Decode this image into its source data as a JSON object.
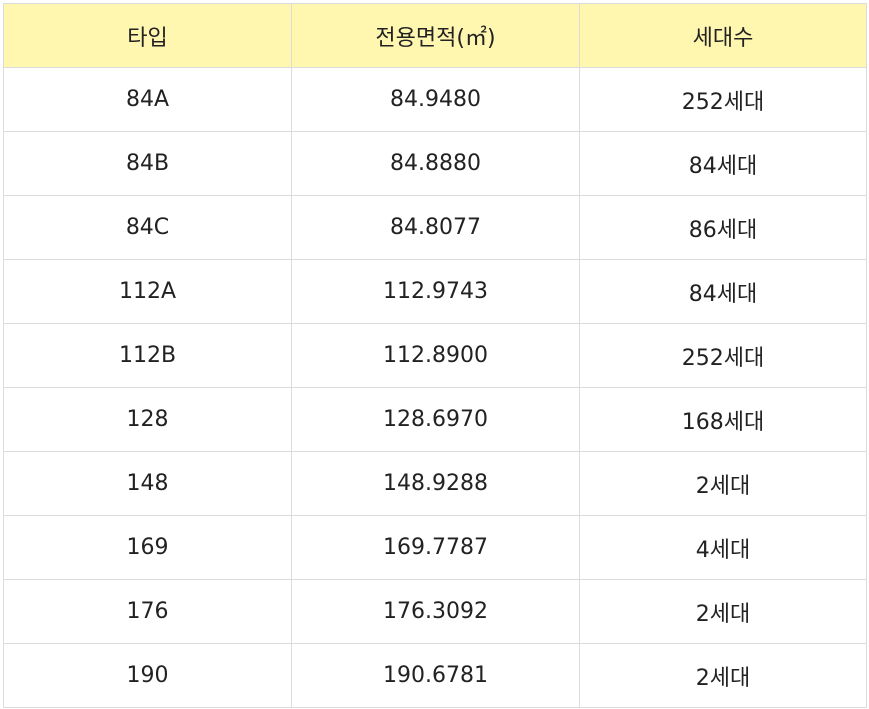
{
  "table": {
    "header": [
      "타입",
      "전용면적(㎡)",
      "세대수"
    ],
    "rows": [
      [
        "84A",
        "84.9480",
        "252세대"
      ],
      [
        "84B",
        "84.8880",
        "84세대"
      ],
      [
        "84C",
        "84.8077",
        "86세대"
      ],
      [
        "112A",
        "112.9743",
        "84세대"
      ],
      [
        "112B",
        "112.8900",
        "252세대"
      ],
      [
        "128",
        "128.6970",
        "168세대"
      ],
      [
        "148",
        "148.9288",
        "2세대"
      ],
      [
        "169",
        "169.7787",
        "4세대"
      ],
      [
        "176",
        "176.3092",
        "2세대"
      ],
      [
        "190",
        "190.6781",
        "2세대"
      ]
    ]
  }
}
